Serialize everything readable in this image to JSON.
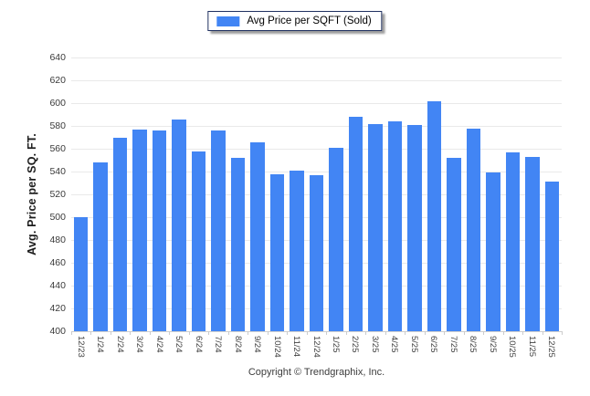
{
  "legend": {
    "label": "Avg Price per SQFT (Sold)",
    "swatch_color": "#4285F4",
    "border_color": "#1f3060"
  },
  "y_axis": {
    "title": "Avg. Price per SQ. FT."
  },
  "footer": {
    "copyright": "Copyright © Trendgraphix, Inc."
  },
  "colors": {
    "bar": "#4285F4",
    "gridline": "#e9e9e9",
    "axis_line": "#cfcfcf"
  },
  "chart_data": {
    "type": "bar",
    "title": "Avg Price per SQFT (Sold)",
    "xlabel": "",
    "ylabel": "Avg. Price per SQ. FT.",
    "categories": [
      "12/23",
      "1/24",
      "2/24",
      "3/24",
      "4/24",
      "5/24",
      "6/24",
      "7/24",
      "8/24",
      "9/24",
      "10/24",
      "11/24",
      "12/24",
      "1/25",
      "2/25",
      "3/25",
      "4/25",
      "5/25",
      "6/25",
      "7/25",
      "8/25",
      "9/25",
      "10/25",
      "11/25",
      "12/25"
    ],
    "values": [
      500,
      548,
      570,
      577,
      576,
      586,
      558,
      576,
      552,
      566,
      538,
      541,
      537,
      561,
      588,
      582,
      584,
      581,
      602,
      552,
      578,
      539,
      557,
      553,
      531
    ],
    "ylim": [
      400,
      640
    ],
    "ytick_step": 20,
    "grid": true,
    "legend_position": "top-center",
    "bar_color": "#4285F4"
  }
}
